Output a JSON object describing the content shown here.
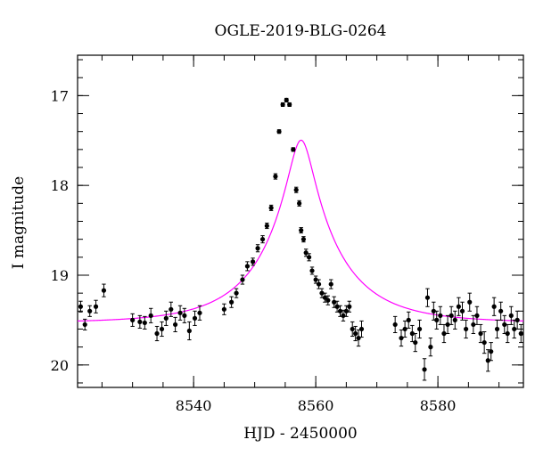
{
  "chart_data": {
    "type": "scatter",
    "title": "OGLE-2019-BLG-0264",
    "xlabel": "HJD - 2450000",
    "ylabel": "I magnitude",
    "xlim": [
      8521,
      8594
    ],
    "ylim": [
      20.25,
      16.55
    ],
    "y_inverted": true,
    "x_ticks": [
      8540,
      8560,
      8580
    ],
    "y_ticks": [
      17,
      18,
      19,
      20
    ],
    "x_minor_step": 5,
    "y_minor_step": 0.2,
    "grid": false,
    "colors": {
      "data": "#000000",
      "model": "#ff00ff"
    },
    "model": {
      "name": "",
      "baseline_mag": 19.53,
      "t0": 8557.6,
      "u0": 0.155,
      "tE": 12.5
    },
    "series": [
      {
        "name": "",
        "x": [
          8521.5,
          8522.2,
          8523.0,
          8524.0,
          8525.3,
          8530.0,
          8531.2,
          8532.0,
          8533.0,
          8534.0,
          8534.8,
          8535.5,
          8536.3,
          8537.0,
          8537.8,
          8538.5,
          8539.3,
          8540.2,
          8541.0,
          8545.0,
          8546.2,
          8547.0,
          8548.0,
          8548.8,
          8549.7,
          8550.5,
          8551.3,
          8552.0,
          8552.7,
          8553.4,
          8554.0,
          8554.6,
          8555.2,
          8555.7,
          8556.3,
          8556.8,
          8557.3,
          8557.6,
          8558.0,
          8558.4,
          8558.9,
          8559.4,
          8560.0,
          8560.5,
          8561.0,
          8561.5,
          8562.0,
          8562.5,
          8563.0,
          8563.5,
          8564.0,
          8564.5,
          8565.0,
          8565.5,
          8566.0,
          8566.5,
          8567.0,
          8567.5,
          8573.0,
          8574.0,
          8574.6,
          8575.2,
          8575.8,
          8576.3,
          8577.0,
          8577.8,
          8578.3,
          8578.8,
          8579.3,
          8579.8,
          8580.4,
          8581.0,
          8581.6,
          8582.2,
          8582.8,
          8583.4,
          8584.0,
          8584.6,
          8585.2,
          8585.8,
          8586.4,
          8587.0,
          8587.6,
          8588.2,
          8588.7,
          8589.2,
          8589.7,
          8590.3,
          8590.9,
          8591.4,
          8592.0,
          8592.5,
          8593.0,
          8593.6
        ],
        "y": [
          19.35,
          19.55,
          19.4,
          19.35,
          19.17,
          19.5,
          19.52,
          19.53,
          19.45,
          19.65,
          19.6,
          19.48,
          19.38,
          19.55,
          19.42,
          19.45,
          19.62,
          19.48,
          19.42,
          19.38,
          19.3,
          19.2,
          19.05,
          18.9,
          18.85,
          18.7,
          18.6,
          18.45,
          18.25,
          17.9,
          17.4,
          17.1,
          17.05,
          17.1,
          17.6,
          18.05,
          18.2,
          18.5,
          18.6,
          18.75,
          18.8,
          18.95,
          19.05,
          19.1,
          19.2,
          19.25,
          19.28,
          19.1,
          19.3,
          19.35,
          19.4,
          19.45,
          19.4,
          19.35,
          19.6,
          19.65,
          19.7,
          19.6,
          19.55,
          19.7,
          19.6,
          19.5,
          19.65,
          19.75,
          19.6,
          20.05,
          19.25,
          19.8,
          19.4,
          19.5,
          19.45,
          19.65,
          19.55,
          19.45,
          19.5,
          19.35,
          19.4,
          19.6,
          19.3,
          19.55,
          19.45,
          19.65,
          19.75,
          19.95,
          19.85,
          19.35,
          19.6,
          19.4,
          19.55,
          19.65,
          19.45,
          19.6,
          19.5,
          19.65
        ],
        "err": [
          0.06,
          0.06,
          0.06,
          0.07,
          0.07,
          0.07,
          0.07,
          0.07,
          0.08,
          0.08,
          0.08,
          0.08,
          0.08,
          0.08,
          0.08,
          0.08,
          0.1,
          0.08,
          0.08,
          0.06,
          0.06,
          0.05,
          0.05,
          0.05,
          0.04,
          0.04,
          0.04,
          0.03,
          0.03,
          0.03,
          0.02,
          0.02,
          0.02,
          0.02,
          0.02,
          0.03,
          0.03,
          0.03,
          0.03,
          0.04,
          0.04,
          0.04,
          0.04,
          0.05,
          0.05,
          0.05,
          0.05,
          0.05,
          0.06,
          0.06,
          0.06,
          0.06,
          0.06,
          0.06,
          0.08,
          0.08,
          0.09,
          0.09,
          0.09,
          0.09,
          0.09,
          0.09,
          0.09,
          0.1,
          0.1,
          0.12,
          0.1,
          0.1,
          0.1,
          0.1,
          0.1,
          0.1,
          0.1,
          0.1,
          0.1,
          0.1,
          0.1,
          0.1,
          0.1,
          0.1,
          0.1,
          0.1,
          0.12,
          0.12,
          0.1,
          0.1,
          0.1,
          0.1,
          0.1,
          0.1,
          0.1,
          0.1,
          0.1,
          0.1
        ]
      }
    ]
  }
}
